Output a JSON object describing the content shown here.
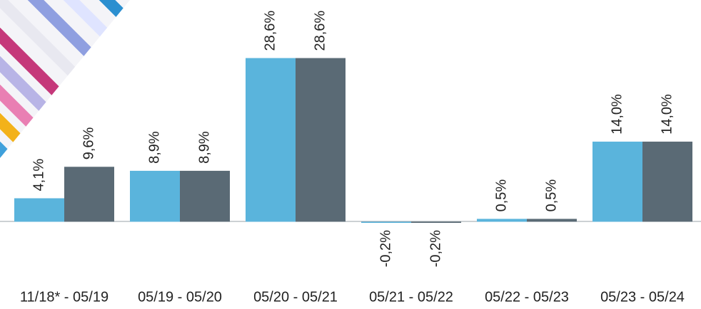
{
  "chart_data": {
    "type": "bar",
    "categories": [
      "11/18* - 05/19",
      "05/19 - 05/20",
      "05/20 - 05/21",
      "05/21 - 05/22",
      "05/22 - 05/23",
      "05/23 - 05/24"
    ],
    "series": [
      {
        "color": "#5ab4dc",
        "values": [
          4.1,
          8.9,
          28.6,
          -0.2,
          0.5,
          14.0
        ],
        "value_labels": [
          "4,1%",
          "8,9%",
          "28,6%",
          "-0,2%",
          "0,5%",
          "14,0%"
        ]
      },
      {
        "color": "#5a6a75",
        "values": [
          9.6,
          8.9,
          28.6,
          -0.2,
          0.5,
          14.0
        ],
        "value_labels": [
          "9,6%",
          "8,9%",
          "28,6%",
          "-0,2%",
          "0,5%",
          "14,0%"
        ]
      }
    ],
    "ylim": [
      -15,
      38
    ]
  }
}
